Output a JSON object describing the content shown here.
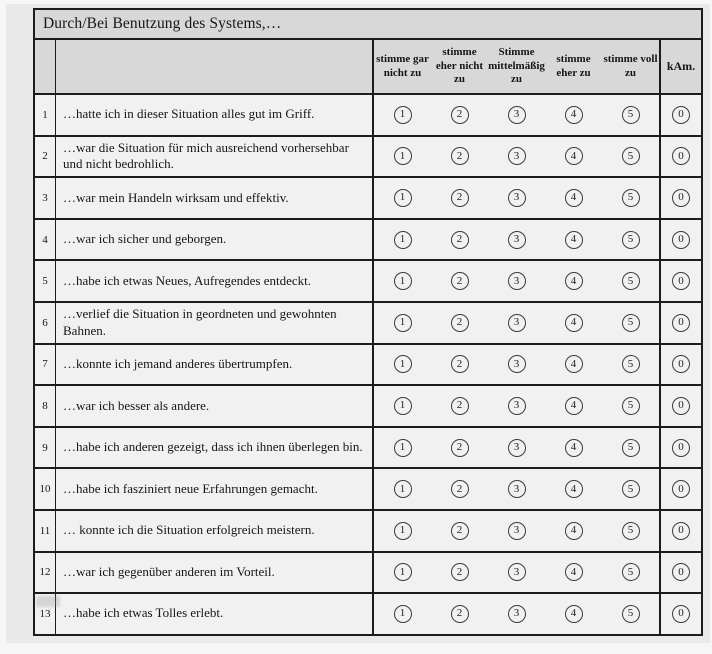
{
  "title": "Durch/Bei Benutzung des Systems,…",
  "table": {
    "header": {
      "columns": [
        "stimme gar nicht zu",
        "stimme eher nicht zu",
        "Stimme mittelmäßig zu",
        "stimme eher zu",
        "stimme voll zu"
      ],
      "kam": "kAm."
    },
    "scale": [
      "1",
      "2",
      "3",
      "4",
      "5"
    ],
    "kam_value": "0",
    "rows": [
      {
        "num": "1",
        "text": "…hatte ich in dieser Situation alles gut im Griff."
      },
      {
        "num": "2",
        "text": "…war die Situation für mich ausreichend vorhersehbar und nicht bedrohlich."
      },
      {
        "num": "3",
        "text": "…war mein Handeln wirksam und effektiv."
      },
      {
        "num": "4",
        "text": "…war ich sicher und geborgen."
      },
      {
        "num": "5",
        "text": "…habe ich etwas Neues, Aufregendes entdeckt."
      },
      {
        "num": "6",
        "text": "…verlief die Situation in geordneten und gewohnten Bahnen."
      },
      {
        "num": "7",
        "text": "…konnte ich jemand anderes übertrumpfen."
      },
      {
        "num": "8",
        "text": "…war ich besser als andere."
      },
      {
        "num": "9",
        "text": "…habe ich anderen gezeigt, dass ich ihnen überlegen bin."
      },
      {
        "num": "10",
        "text": "…habe ich fasziniert neue Erfahrungen gemacht."
      },
      {
        "num": "11",
        "text": "… konnte ich die Situation erfolgreich meistern."
      },
      {
        "num": "12",
        "text": "…war ich gegenüber anderen im Vorteil."
      },
      {
        "num": "13",
        "text": "…habe ich etwas Tolles erlebt."
      }
    ]
  },
  "colors": {
    "page_bg": "#e9e9e9",
    "header_bg": "#d8d8d8",
    "cell_bg": "#f1f1f1",
    "border": "#1c1c1c"
  }
}
